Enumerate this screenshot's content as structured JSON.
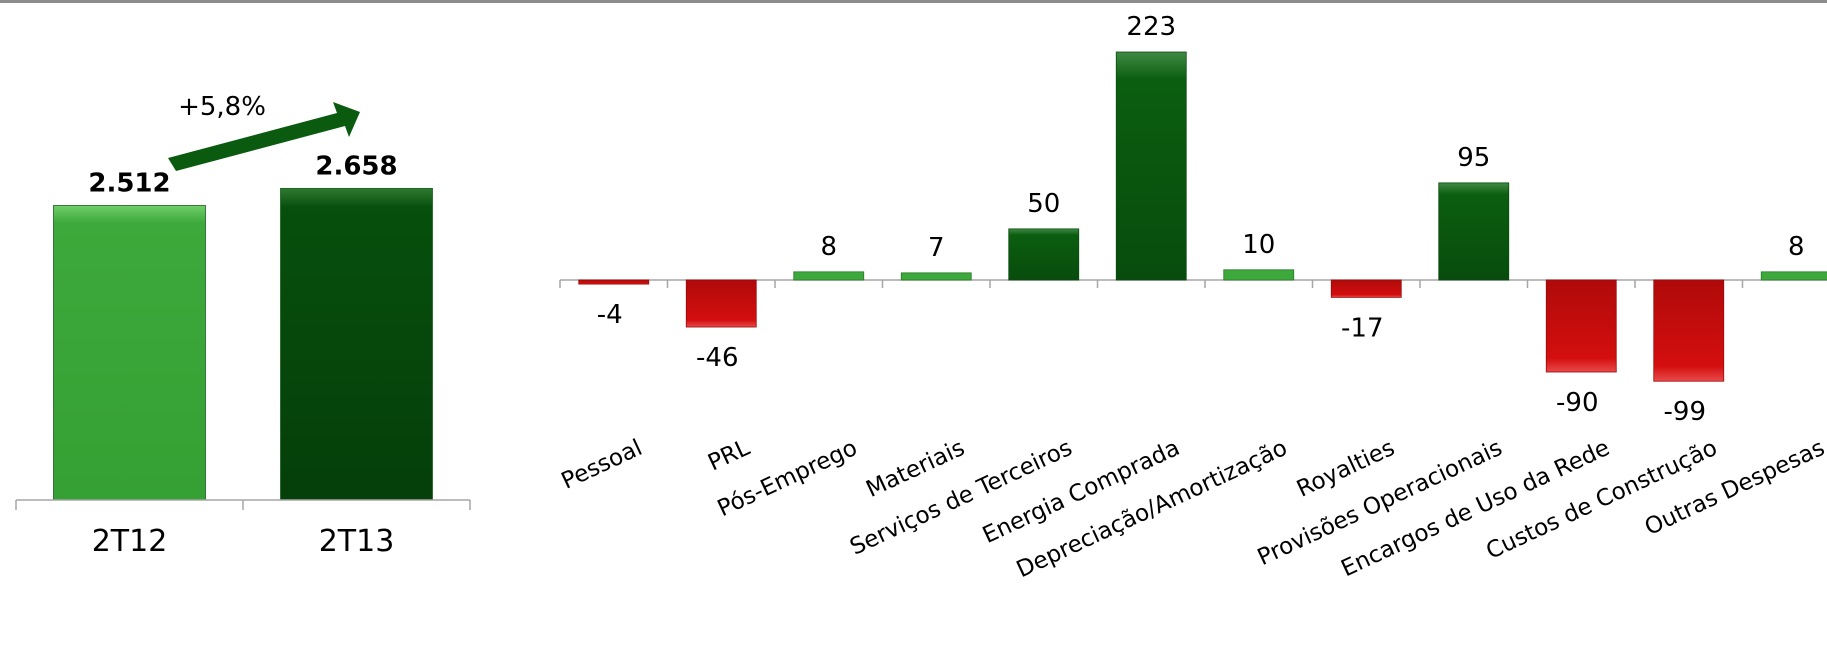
{
  "colors": {
    "light_green": "#3da83b",
    "dark_green": "#064f0c",
    "mid_green": "#0b5e10",
    "red": "#d40e0e",
    "axis": "#a6a6a6",
    "arrow": "#0a5a10"
  },
  "growth_label": "+5,8%",
  "chart_data": [
    {
      "type": "bar",
      "categories": [
        "2T12",
        "2T13"
      ],
      "values": [
        2512,
        2658
      ],
      "value_labels": [
        "2.512",
        "2.658"
      ],
      "ylim": [
        0,
        2900
      ]
    },
    {
      "type": "bar",
      "categories": [
        "Pessoal",
        "PRL",
        "Pós-Emprego",
        "Materiais",
        "Serviços de Terceiros",
        "Energia Comprada",
        "Depreciação/Amortização",
        "Royalties",
        "Provisões Operacionais",
        "Encargos de Uso da Rede",
        "Custos de Construção",
        "Outras Despesas"
      ],
      "values": [
        -4,
        -46,
        8,
        7,
        50,
        223,
        10,
        -17,
        95,
        -90,
        -99,
        8
      ],
      "value_labels": [
        "-4",
        "-46",
        "8",
        "7",
        "50",
        "223",
        "10",
        "-17",
        "95",
        "-90",
        "-99",
        "8"
      ]
    }
  ]
}
